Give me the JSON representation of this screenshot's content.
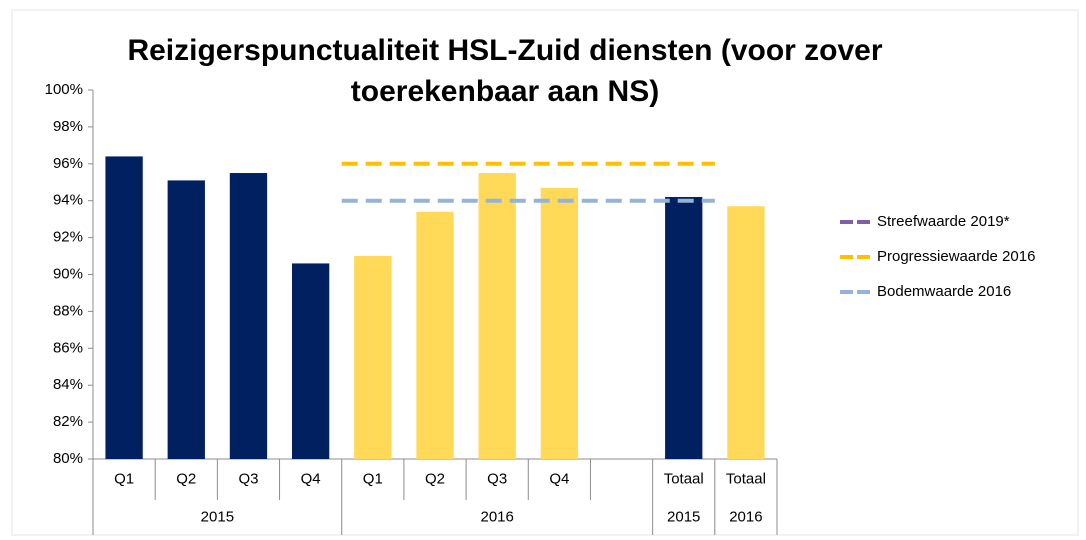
{
  "chart_data": {
    "type": "bar",
    "title": "Reizigerspunctualiteit HSL-Zuid diensten (voor zover toerekenbaar aan NS)",
    "groups": [
      {
        "label": "2015",
        "color": "#002060",
        "categories": [
          "Q1",
          "Q2",
          "Q3",
          "Q4"
        ],
        "values": [
          96.4,
          95.1,
          95.5,
          90.6
        ]
      },
      {
        "label": "2016",
        "color": "#ffd957",
        "categories": [
          "Q1",
          "Q2",
          "Q3",
          "Q4",
          null
        ],
        "values": [
          91.0,
          93.4,
          95.5,
          94.7,
          null
        ]
      },
      {
        "label": "2015",
        "color": "#002060",
        "categories": [
          "Totaal"
        ],
        "values": [
          94.2
        ]
      },
      {
        "label": "2016",
        "color": "#ffd957",
        "categories": [
          "Totaal"
        ],
        "values": [
          93.7
        ]
      }
    ],
    "series": [
      {
        "name": "Streefwaarde 2019*",
        "color": "#7f5fa8",
        "values": [
          null,
          null,
          null,
          null,
          null,
          null,
          null,
          null,
          null,
          null,
          null
        ]
      },
      {
        "name": "Progressiewaarde 2016",
        "color": "#ffc000",
        "values": [
          null,
          null,
          null,
          null,
          96,
          96,
          96,
          96,
          96,
          96,
          null
        ]
      },
      {
        "name": "Bodemwaarde 2016",
        "color": "#95b3d7",
        "values": [
          null,
          null,
          null,
          null,
          94,
          94,
          94,
          94,
          94,
          94,
          null
        ]
      }
    ],
    "ylim": [
      80,
      100
    ],
    "yticks": [
      {
        "value": 80,
        "label": "80%"
      },
      {
        "value": 82,
        "label": "82%"
      },
      {
        "value": 84,
        "label": "84%"
      },
      {
        "value": 86,
        "label": "86%"
      },
      {
        "value": 88,
        "label": "88%"
      },
      {
        "value": 90,
        "label": "90%"
      },
      {
        "value": 92,
        "label": "92%"
      },
      {
        "value": 94,
        "label": "94%"
      },
      {
        "value": 96,
        "label": "96%"
      },
      {
        "value": 98,
        "label": "98%"
      },
      {
        "value": 100,
        "label": "100%"
      }
    ],
    "legend": "right"
  }
}
